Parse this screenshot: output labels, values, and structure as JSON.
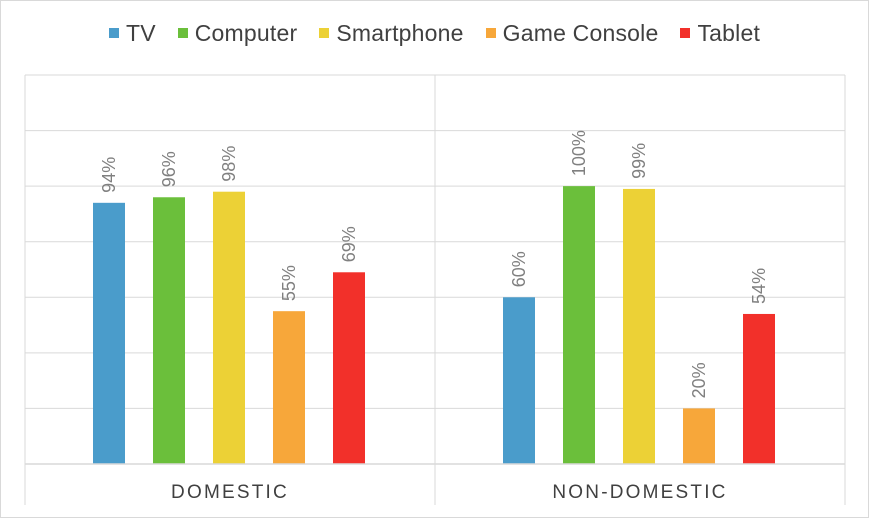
{
  "chart_data": {
    "type": "bar",
    "categories": [
      "DOMESTIC",
      "NON-DOMESTIC"
    ],
    "series": [
      {
        "name": "TV",
        "color": "#4a9ccb",
        "values": [
          94,
          60
        ],
        "labels": [
          "94%",
          "60%"
        ]
      },
      {
        "name": "Computer",
        "color": "#6bbf3b",
        "values": [
          96,
          100
        ],
        "labels": [
          "96%",
          "100%"
        ]
      },
      {
        "name": "Smartphone",
        "color": "#ecd136",
        "values": [
          98,
          99
        ],
        "labels": [
          "98%",
          "99%"
        ]
      },
      {
        "name": "Game Console",
        "color": "#f7a73a",
        "values": [
          55,
          20
        ],
        "labels": [
          "55%",
          "20%"
        ]
      },
      {
        "name": "Tablet",
        "color": "#f2302a",
        "values": [
          69,
          54
        ],
        "labels": [
          "69%",
          "54%"
        ]
      }
    ],
    "ylim": [
      0,
      140
    ],
    "gridlines": [
      20,
      40,
      60,
      80,
      100,
      120,
      140
    ],
    "grid": true,
    "legend_position": "top",
    "title": "",
    "xlabel": "",
    "ylabel": ""
  }
}
